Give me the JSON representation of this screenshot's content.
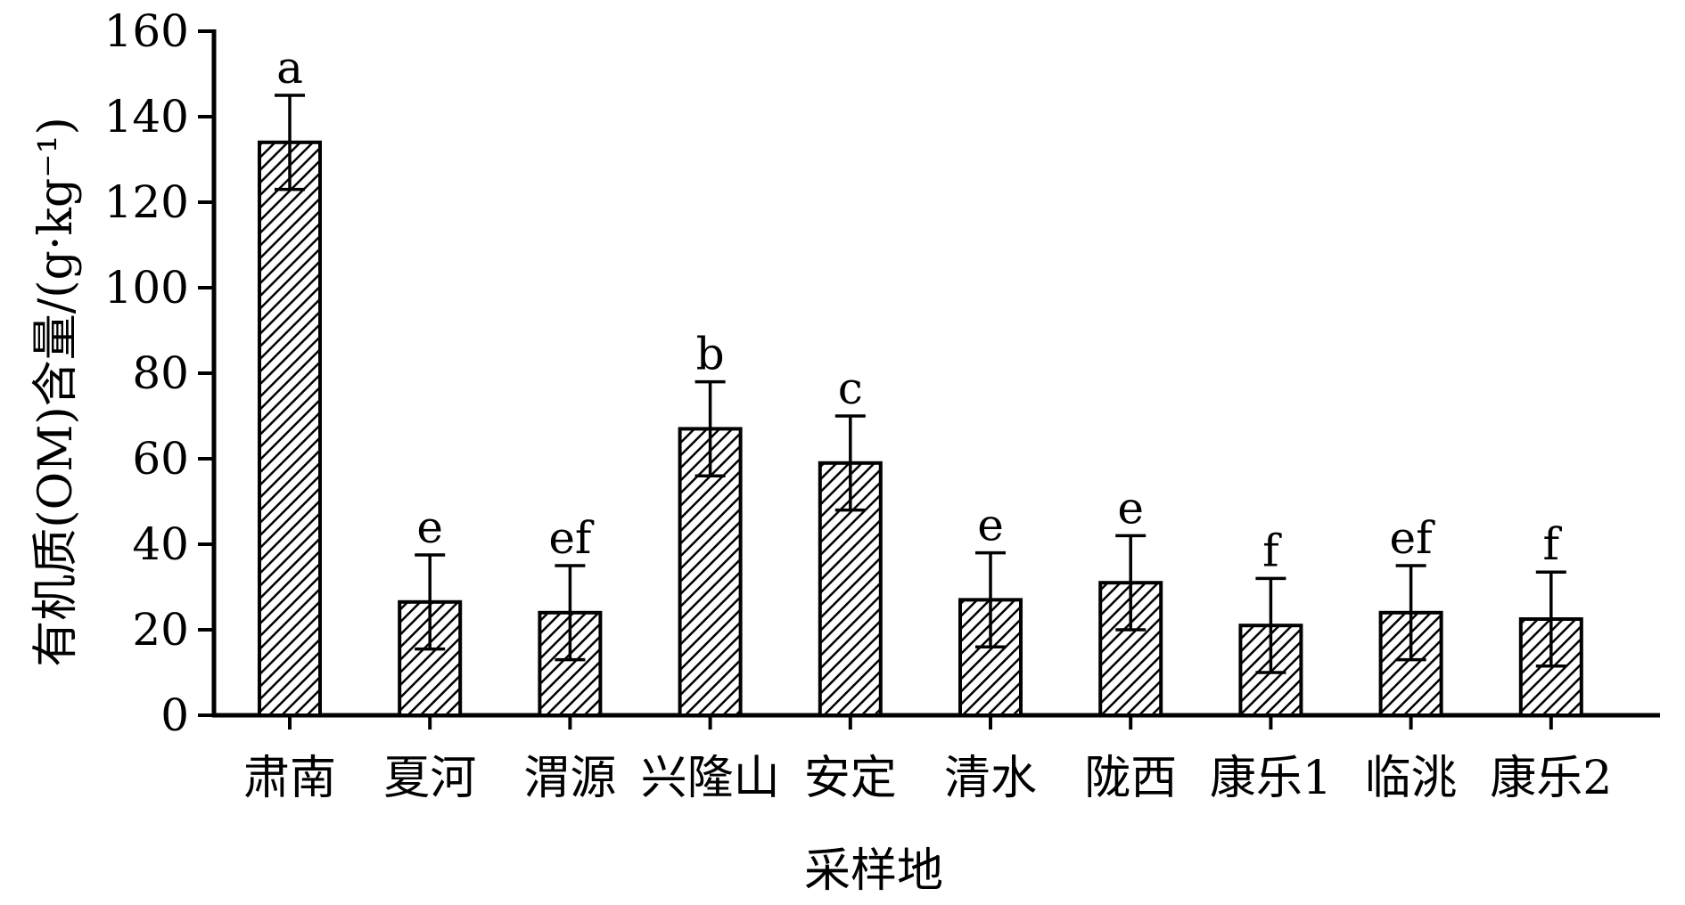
{
  "chart_data": {
    "type": "bar",
    "xlabel": "采样地",
    "ylabel": "有机质(OM)含量/(g·kg⁻¹)",
    "ylim": [
      0,
      160
    ],
    "yticks": [
      0,
      20,
      40,
      60,
      80,
      100,
      120,
      140,
      160
    ],
    "grid": false,
    "fill_pattern": "diagonal-hatch",
    "categories": [
      "肃南",
      "夏河",
      "渭源",
      "兴隆山",
      "安定",
      "清水",
      "陇西",
      "康乐1",
      "临洮",
      "康乐2"
    ],
    "values": [
      134,
      26.5,
      24,
      67,
      59,
      27,
      31,
      21,
      24,
      22.5
    ],
    "errors": [
      11,
      11,
      11,
      11,
      11,
      11,
      11,
      11,
      11,
      11
    ],
    "significance_labels": [
      "a",
      "e",
      "ef",
      "b",
      "c",
      "e",
      "e",
      "f",
      "ef",
      "f"
    ]
  }
}
